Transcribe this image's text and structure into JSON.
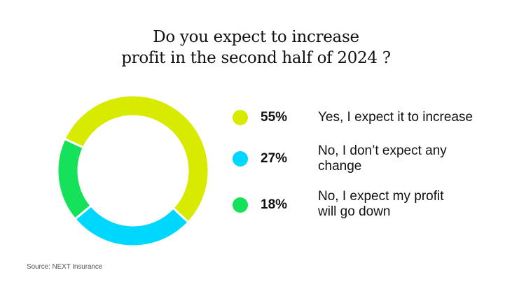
{
  "chart_data": {
    "type": "pie",
    "title": "Do you expect to increase profit in the second half of 2024 ?",
    "title_lines": [
      "Do you expect to increase",
      "profit in the second half of 2024 ?"
    ],
    "donut": true,
    "slices": [
      {
        "label": "Yes, I expect it to increase",
        "label_lines": [
          "Yes, I expect it to increase"
        ],
        "value": 55,
        "display": "55%",
        "color": "#d7ea00"
      },
      {
        "label": "No, I don’t expect any change",
        "label_lines": [
          "No, I don’t expect any",
          "change"
        ],
        "value": 27,
        "display": "27%",
        "color": "#00d7ff"
      },
      {
        "label": "No, I expect my profit will go down",
        "label_lines": [
          "No, I expect my profit",
          "will go down"
        ],
        "value": 18,
        "display": "18%",
        "color": "#16e15a"
      }
    ],
    "legend_position": "right",
    "start_angle_deg": -65,
    "direction": "clockwise"
  },
  "source": "Source: NEXT Insurance"
}
